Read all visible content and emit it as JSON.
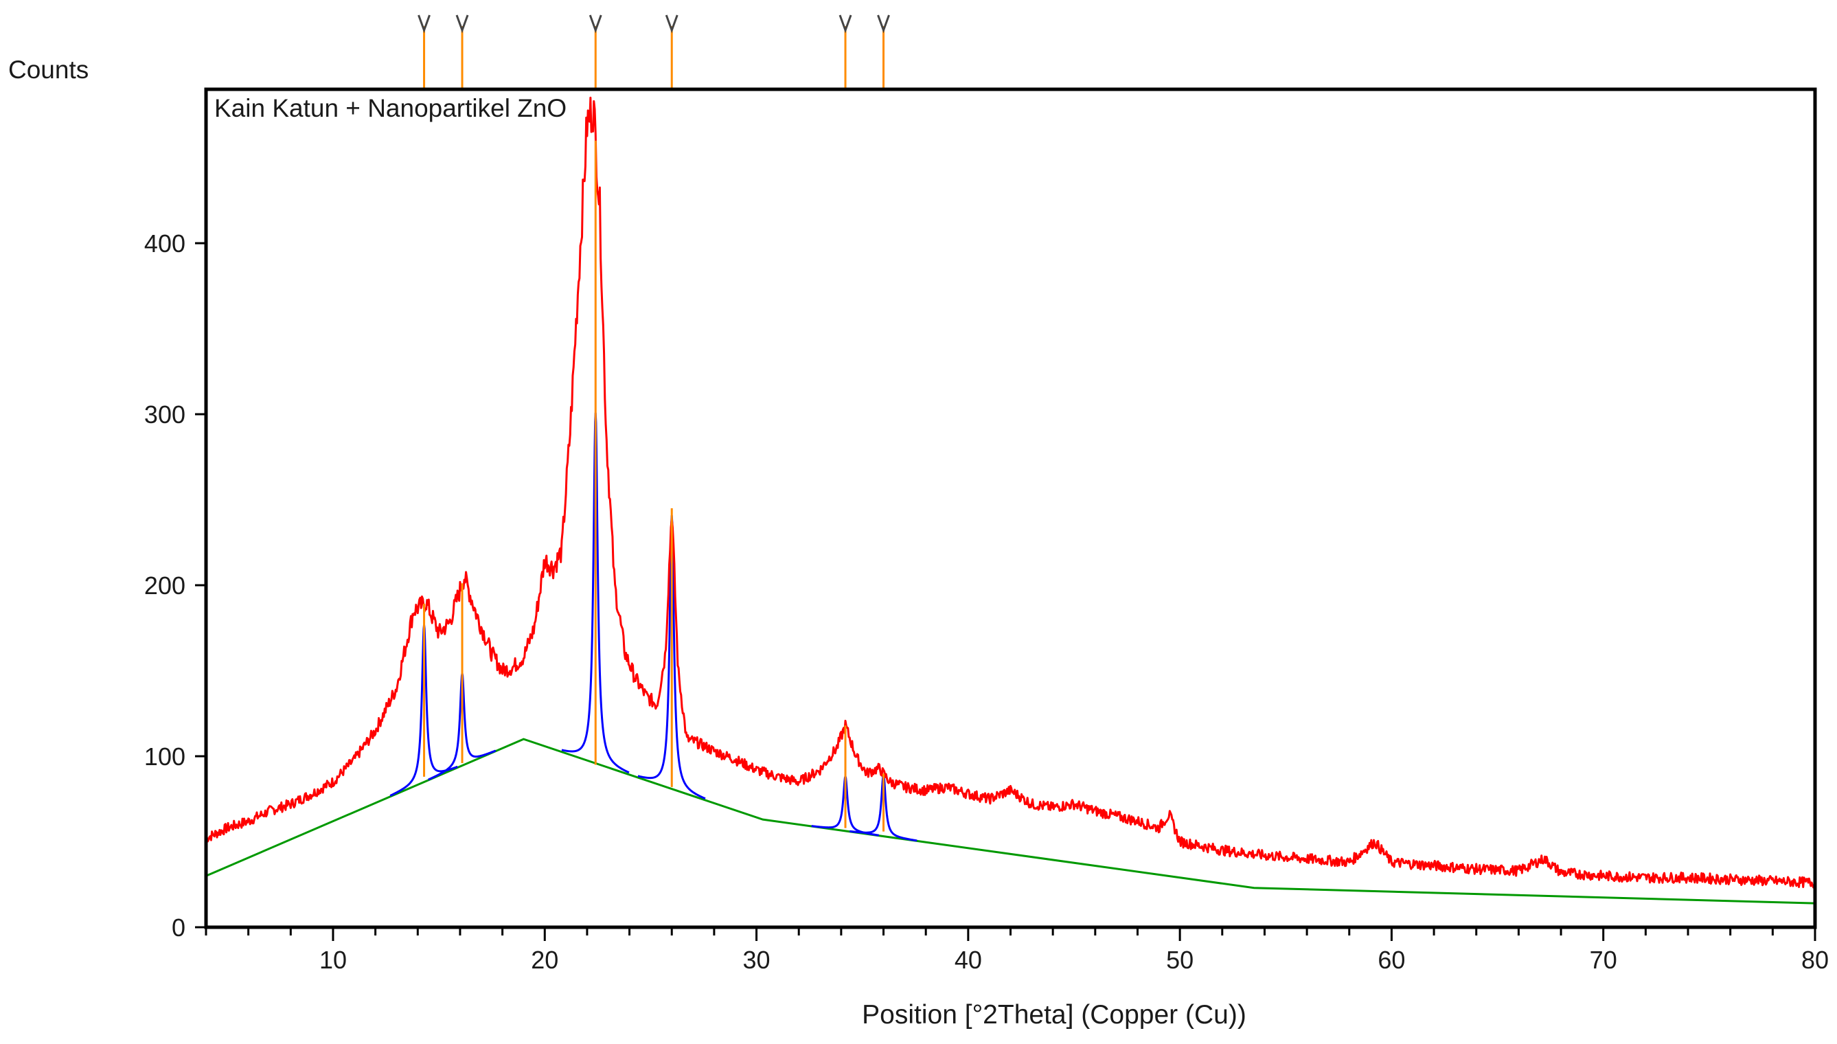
{
  "chart_data": {
    "type": "line",
    "title": "",
    "sample_label": "Kain Katun + Nanopartikel ZnO",
    "ylabel": "Counts",
    "xlabel": "Position [°2Theta] (Copper (Cu))",
    "xlim": [
      4,
      80
    ],
    "ylim": [
      0,
      490
    ],
    "x_ticks": [
      10,
      20,
      30,
      40,
      50,
      60,
      70,
      80
    ],
    "y_ticks": [
      0,
      100,
      200,
      300,
      400
    ],
    "grid": false,
    "colors": {
      "observed": "#ff0000",
      "background": "#009900",
      "peak_fit": "#0000ff",
      "peak_marker": "#ff8c00",
      "frame": "#000000"
    },
    "series": [
      {
        "key": "observed",
        "x": [
          4,
          5,
          6,
          7,
          8,
          9,
          10,
          11,
          12,
          13,
          13.8,
          14.4,
          15.0,
          15.5,
          16.2,
          16.8,
          17.5,
          18.0,
          18.5,
          19.0,
          19.5,
          20.0,
          20.4,
          20.8,
          21.2,
          21.6,
          22.0,
          22.3,
          22.6,
          22.9,
          23.3,
          23.8,
          24.3,
          24.8,
          25.3,
          25.7,
          26.0,
          26.3,
          26.7,
          27.2,
          28,
          29,
          30,
          31,
          32,
          33,
          33.8,
          34.2,
          34.7,
          35.2,
          35.8,
          36.3,
          37,
          38,
          39,
          40,
          41,
          42,
          43,
          44,
          45,
          46,
          47,
          48,
          49,
          49.5,
          50,
          52,
          54,
          56,
          58,
          59.2,
          60,
          62,
          64,
          66,
          67.2,
          68,
          70,
          72,
          74,
          76,
          78,
          80
        ],
        "y": [
          52,
          58,
          62,
          68,
          72,
          78,
          85,
          98,
          115,
          140,
          185,
          190,
          172,
          178,
          205,
          182,
          160,
          150,
          152,
          158,
          175,
          215,
          210,
          220,
          290,
          380,
          470,
          480,
          420,
          290,
          200,
          160,
          145,
          135,
          130,
          160,
          245,
          150,
          110,
          108,
          103,
          98,
          92,
          88,
          85,
          92,
          105,
          118,
          100,
          90,
          93,
          85,
          82,
          80,
          82,
          78,
          75,
          80,
          72,
          70,
          72,
          68,
          65,
          62,
          58,
          66,
          50,
          45,
          42,
          40,
          38,
          50,
          38,
          36,
          34,
          33,
          40,
          32,
          30,
          29,
          29,
          28,
          27,
          26
        ]
      },
      {
        "key": "background",
        "x": [
          4,
          19,
          30.3,
          53.5,
          80
        ],
        "y": [
          30,
          110,
          63,
          23,
          14
        ]
      }
    ],
    "peaks": [
      {
        "position": 14.3,
        "fit_height": 180,
        "base": 88
      },
      {
        "position": 16.1,
        "fit_height": 150,
        "base": 96
      },
      {
        "position": 22.4,
        "fit_height": 300,
        "base": 95
      },
      {
        "position": 26.0,
        "fit_height": 242,
        "base": 82
      },
      {
        "position": 34.2,
        "fit_height": 90,
        "base": 58
      },
      {
        "position": 36.0,
        "fit_height": 92,
        "base": 56
      }
    ]
  }
}
